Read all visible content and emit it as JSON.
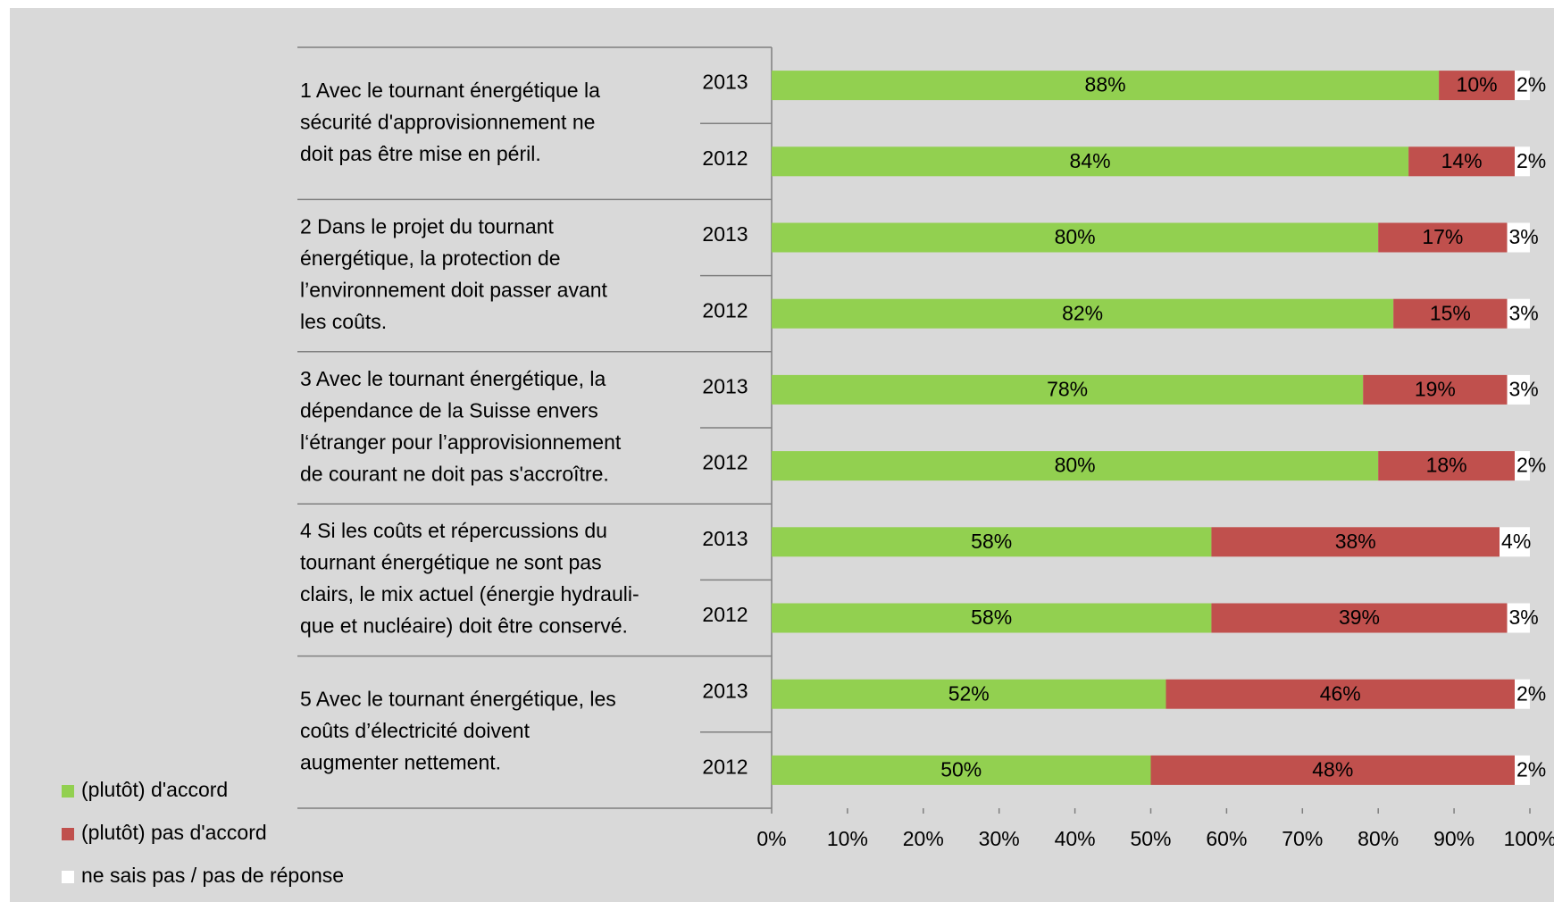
{
  "chart_data": {
    "type": "stacked-bar",
    "groups": [
      [
        "1 Avec le tournant énergétique la",
        "sécurité d'approvisionnement ne",
        "doit pas être mise en péril."
      ],
      [
        "2 Dans le projet du tournant",
        "énergétique, la protection de",
        "l’environnement doit passer avant",
        "les coûts."
      ],
      [
        "3 Avec le tournant énergétique, la",
        "dépendance de la Suisse envers",
        "l‘étranger pour  l’approvisionnement",
        "de courant ne doit pas s'accroître."
      ],
      [
        "4 Si les coûts et répercussions du",
        "tournant énergétique ne sont pas",
        "clairs, le mix actuel (énergie hydrauli-",
        "que et nucléaire) doit être conservé."
      ],
      [
        "5 Avec le tournant énergétique, les",
        "coûts d’électricité  doivent",
        "augmenter nettement."
      ]
    ],
    "categories": [
      "2013",
      "2012",
      "2013",
      "2012",
      "2013",
      "2012",
      "2013",
      "2012",
      "2013",
      "2012"
    ],
    "series": [
      {
        "name": "(plutôt) d'accord",
        "color": "#92d050",
        "values": [
          88,
          84,
          80,
          82,
          78,
          80,
          58,
          58,
          52,
          50
        ],
        "value_labels": [
          "88%",
          "84%",
          "80%",
          "82%",
          "78%",
          "80%",
          "58%",
          "58%",
          "52%",
          "50%"
        ]
      },
      {
        "name": "(plutôt) pas d'accord",
        "color": "#c0504d",
        "values": [
          10,
          14,
          17,
          15,
          19,
          18,
          38,
          39,
          46,
          48
        ],
        "value_labels": [
          "10%",
          "14%",
          "17%",
          "15%",
          "19%",
          "18%",
          "38%",
          "39%",
          "46%",
          "48%"
        ]
      },
      {
        "name": "ne sais pas / pas de réponse",
        "color": "#ffffff",
        "values": [
          2,
          2,
          3,
          3,
          3,
          2,
          4,
          3,
          2,
          2
        ],
        "value_labels": [
          "2%",
          "2%",
          "3%",
          "3%",
          "3%",
          "2%",
          "4%",
          "3%",
          "2%",
          "2%"
        ]
      }
    ],
    "xlim": [
      0,
      100
    ],
    "xticks": [
      {
        "value": 0,
        "label": "0%"
      },
      {
        "value": 10,
        "label": "10%"
      },
      {
        "value": 20,
        "label": "20%"
      },
      {
        "value": 30,
        "label": "30%"
      },
      {
        "value": 40,
        "label": "40%"
      },
      {
        "value": 50,
        "label": "50%"
      },
      {
        "value": 60,
        "label": "60%"
      },
      {
        "value": 70,
        "label": "70%"
      },
      {
        "value": 80,
        "label": "80%"
      },
      {
        "value": 90,
        "label": "90%"
      },
      {
        "value": 100,
        "label": "100%"
      }
    ],
    "legend": "bottom-left"
  }
}
